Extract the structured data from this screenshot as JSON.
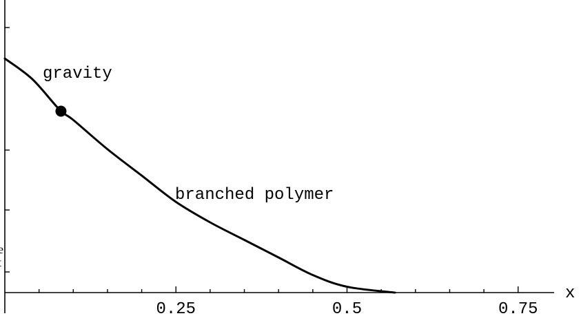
{
  "chart_data": {
    "type": "line",
    "xlabel": "x",
    "x_ticks": [
      "0.25",
      "0.5",
      "0.75"
    ],
    "xlim": [
      0,
      0.8
    ],
    "ylim": [
      0,
      1
    ],
    "series": [
      {
        "points": [
          [
            0.0,
            0.8
          ],
          [
            0.04,
            0.73
          ],
          [
            0.08,
            0.625
          ],
          [
            0.1,
            0.59
          ],
          [
            0.15,
            0.49
          ],
          [
            0.2,
            0.4
          ],
          [
            0.25,
            0.31
          ],
          [
            0.3,
            0.24
          ],
          [
            0.35,
            0.18
          ],
          [
            0.4,
            0.12
          ],
          [
            0.45,
            0.06
          ],
          [
            0.5,
            0.02
          ],
          [
            0.57,
            0.0
          ]
        ]
      }
    ],
    "marker": {
      "x": 0.082,
      "y": 0.62
    },
    "annotations": [
      "gravity",
      "branched polymer"
    ],
    "grid": false
  }
}
